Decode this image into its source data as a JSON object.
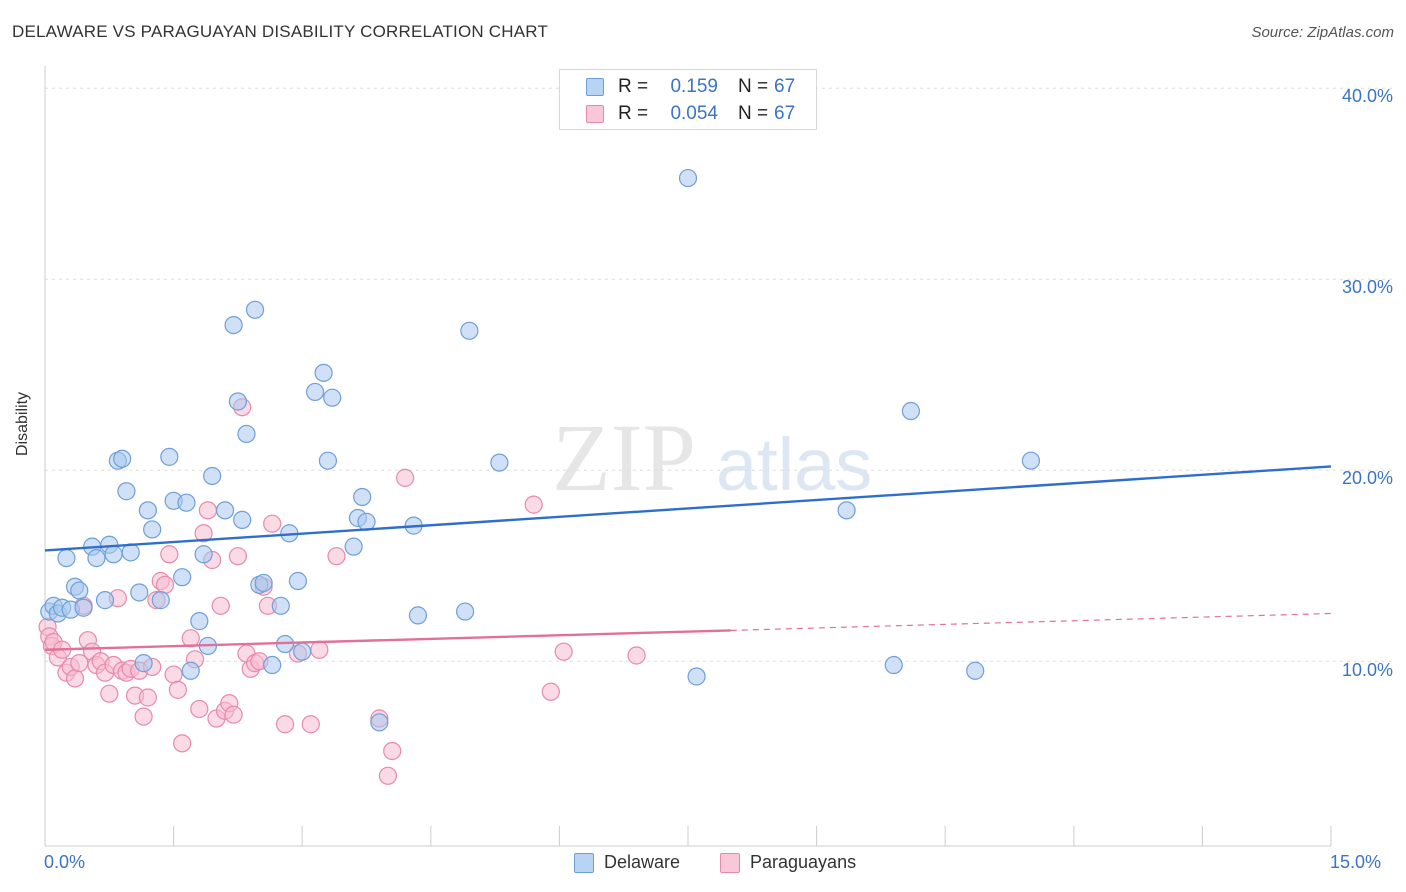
{
  "title": "DELAWARE VS PARAGUAYAN DISABILITY CORRELATION CHART",
  "source": "Source: ZipAtlas.com",
  "watermark": {
    "zip": "ZIP",
    "atlas": "atlas"
  },
  "legend_top": {
    "rows": [
      {
        "r_label": "R =",
        "r_value": "0.159",
        "n_label": "N =",
        "n_value": "67"
      },
      {
        "r_label": "R =",
        "r_value": "0.054",
        "n_label": "N =",
        "n_value": "67"
      }
    ]
  },
  "legend_bottom": {
    "items": [
      "Delaware",
      "Paraguayans"
    ]
  },
  "axis": {
    "ylabel": "Disability",
    "x_min_label": "0.0%",
    "x_max_label": "15.0%",
    "y_ticks": [
      "10.0%",
      "20.0%",
      "30.0%",
      "40.0%"
    ]
  },
  "colors": {
    "delaware_fill": "#a9c8f0",
    "delaware_stroke": "#6f9fd8",
    "delaware_line": "#2f6fcb",
    "paraguayans_fill": "#f6bcd0",
    "paraguayans_stroke": "#e78aa8",
    "paraguayans_line": "#e2709a",
    "tick_text": "#3a74c4",
    "grid": "#dddddd"
  },
  "chart_data": {
    "type": "scatter",
    "title": "DELAWARE VS PARAGUAYAN DISABILITY CORRELATION CHART",
    "xlabel": "",
    "ylabel": "Disability",
    "xlim": [
      0,
      15
    ],
    "ylim": [
      2,
      40.8
    ],
    "series": [
      {
        "name": "Delaware",
        "r": 0.159,
        "n": 67,
        "trend": {
          "x": [
            0,
            15
          ],
          "y": [
            15.8,
            20.2
          ],
          "dashed_from": null
        },
        "points": [
          [
            0.05,
            12.6
          ],
          [
            0.1,
            12.9
          ],
          [
            0.15,
            12.5
          ],
          [
            0.2,
            12.8
          ],
          [
            0.25,
            15.4
          ],
          [
            0.3,
            12.7
          ],
          [
            0.35,
            13.9
          ],
          [
            0.4,
            13.7
          ],
          [
            0.45,
            12.8
          ],
          [
            0.55,
            16.0
          ],
          [
            0.6,
            15.4
          ],
          [
            0.7,
            13.2
          ],
          [
            0.75,
            16.1
          ],
          [
            0.8,
            15.6
          ],
          [
            0.85,
            20.5
          ],
          [
            0.9,
            20.6
          ],
          [
            0.95,
            18.9
          ],
          [
            1.0,
            15.7
          ],
          [
            1.1,
            13.6
          ],
          [
            1.15,
            9.9
          ],
          [
            1.2,
            17.9
          ],
          [
            1.25,
            16.9
          ],
          [
            1.35,
            13.2
          ],
          [
            1.45,
            20.7
          ],
          [
            1.5,
            18.4
          ],
          [
            1.6,
            14.4
          ],
          [
            1.65,
            18.3
          ],
          [
            1.7,
            9.5
          ],
          [
            1.8,
            12.1
          ],
          [
            1.85,
            15.6
          ],
          [
            1.9,
            10.8
          ],
          [
            1.95,
            19.7
          ],
          [
            2.1,
            17.9
          ],
          [
            2.2,
            27.6
          ],
          [
            2.25,
            23.6
          ],
          [
            2.3,
            17.4
          ],
          [
            2.35,
            21.9
          ],
          [
            2.45,
            28.4
          ],
          [
            2.5,
            14.0
          ],
          [
            2.55,
            14.1
          ],
          [
            2.65,
            9.8
          ],
          [
            2.75,
            12.9
          ],
          [
            2.8,
            10.9
          ],
          [
            2.85,
            16.7
          ],
          [
            2.95,
            14.2
          ],
          [
            3.0,
            10.5
          ],
          [
            3.15,
            24.1
          ],
          [
            3.25,
            25.1
          ],
          [
            3.3,
            20.5
          ],
          [
            3.35,
            23.8
          ],
          [
            3.6,
            16.0
          ],
          [
            3.65,
            17.5
          ],
          [
            3.7,
            18.6
          ],
          [
            3.75,
            17.3
          ],
          [
            3.9,
            6.8
          ],
          [
            4.3,
            17.1
          ],
          [
            4.35,
            12.4
          ],
          [
            4.9,
            12.6
          ],
          [
            4.95,
            27.3
          ],
          [
            5.3,
            20.4
          ],
          [
            7.5,
            35.3
          ],
          [
            7.6,
            9.2
          ],
          [
            9.35,
            17.9
          ],
          [
            9.9,
            9.8
          ],
          [
            10.1,
            23.1
          ],
          [
            10.85,
            9.5
          ],
          [
            11.5,
            20.5
          ]
        ]
      },
      {
        "name": "Paraguayans",
        "r": 0.054,
        "n": 67,
        "trend": {
          "x": [
            0,
            15
          ],
          "y": [
            10.6,
            12.5
          ],
          "dashed_from": 8.0
        },
        "points": [
          [
            0.03,
            11.8
          ],
          [
            0.05,
            11.3
          ],
          [
            0.08,
            10.8
          ],
          [
            0.1,
            11.0
          ],
          [
            0.15,
            10.2
          ],
          [
            0.2,
            10.6
          ],
          [
            0.25,
            9.4
          ],
          [
            0.3,
            9.7
          ],
          [
            0.35,
            9.1
          ],
          [
            0.4,
            9.9
          ],
          [
            0.45,
            12.9
          ],
          [
            0.5,
            11.1
          ],
          [
            0.55,
            10.5
          ],
          [
            0.6,
            9.8
          ],
          [
            0.65,
            10.0
          ],
          [
            0.7,
            9.4
          ],
          [
            0.75,
            8.3
          ],
          [
            0.8,
            9.8
          ],
          [
            0.85,
            13.3
          ],
          [
            0.9,
            9.5
          ],
          [
            0.95,
            9.4
          ],
          [
            1.0,
            9.6
          ],
          [
            1.05,
            8.2
          ],
          [
            1.1,
            9.5
          ],
          [
            1.15,
            7.1
          ],
          [
            1.2,
            8.1
          ],
          [
            1.25,
            9.7
          ],
          [
            1.3,
            13.2
          ],
          [
            1.35,
            14.2
          ],
          [
            1.4,
            14.0
          ],
          [
            1.45,
            15.6
          ],
          [
            1.5,
            9.3
          ],
          [
            1.55,
            8.5
          ],
          [
            1.6,
            5.7
          ],
          [
            1.7,
            11.2
          ],
          [
            1.75,
            10.1
          ],
          [
            1.8,
            7.5
          ],
          [
            1.85,
            16.7
          ],
          [
            1.9,
            17.9
          ],
          [
            1.95,
            15.3
          ],
          [
            2.0,
            7.0
          ],
          [
            2.05,
            12.9
          ],
          [
            2.1,
            7.4
          ],
          [
            2.15,
            7.8
          ],
          [
            2.2,
            7.2
          ],
          [
            2.25,
            15.5
          ],
          [
            2.3,
            23.3
          ],
          [
            2.35,
            10.4
          ],
          [
            2.4,
            9.6
          ],
          [
            2.45,
            9.9
          ],
          [
            2.5,
            10.0
          ],
          [
            2.55,
            13.9
          ],
          [
            2.6,
            12.9
          ],
          [
            2.65,
            17.2
          ],
          [
            2.8,
            6.7
          ],
          [
            2.95,
            10.4
          ],
          [
            3.1,
            6.7
          ],
          [
            3.2,
            10.6
          ],
          [
            3.4,
            15.5
          ],
          [
            3.9,
            7.0
          ],
          [
            4.0,
            4.0
          ],
          [
            4.05,
            5.3
          ],
          [
            4.2,
            19.6
          ],
          [
            5.7,
            18.2
          ],
          [
            5.9,
            8.4
          ],
          [
            6.05,
            10.5
          ],
          [
            6.9,
            10.3
          ]
        ]
      }
    ]
  }
}
